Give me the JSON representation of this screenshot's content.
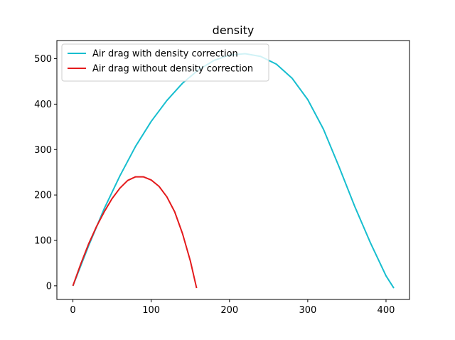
{
  "chart_data": {
    "type": "line",
    "title": "density",
    "xlabel": "",
    "ylabel": "",
    "xlim": [
      -20.5,
      430
    ],
    "ylim": [
      -30,
      540
    ],
    "xticks": [
      0,
      100,
      200,
      300,
      400
    ],
    "yticks": [
      0,
      100,
      200,
      300,
      400,
      500
    ],
    "grid": false,
    "legend_position": "top-left",
    "series": [
      {
        "name": "Air drag with density correction",
        "color": "#17becf",
        "x": [
          0,
          20,
          40,
          60,
          80,
          100,
          120,
          140,
          160,
          180,
          200,
          220,
          240,
          260,
          280,
          300,
          320,
          340,
          360,
          380,
          400,
          410
        ],
        "y": [
          0,
          88,
          170,
          242,
          307,
          362,
          408,
          446,
          475,
          496,
          508,
          511,
          505,
          488,
          457,
          410,
          345,
          262,
          175,
          95,
          22,
          -5
        ]
      },
      {
        "name": "Air drag without density correction",
        "color": "#e41a1c",
        "x": [
          0,
          10,
          20,
          30,
          40,
          50,
          60,
          70,
          80,
          90,
          100,
          110,
          120,
          130,
          140,
          150,
          158
        ],
        "y": [
          0,
          48,
          92,
          130,
          163,
          192,
          215,
          232,
          240,
          240,
          233,
          219,
          196,
          163,
          115,
          55,
          -5
        ]
      }
    ]
  }
}
